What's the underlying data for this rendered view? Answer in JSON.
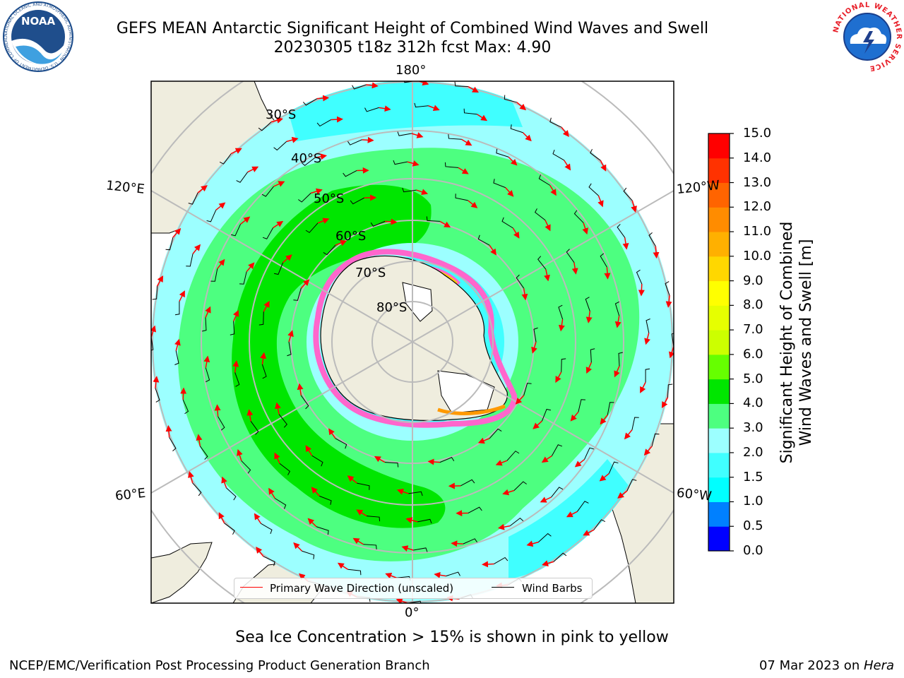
{
  "title": {
    "line1": "GEFS MEAN Antarctic Significant Height of Combined Wind Waves and Swell",
    "line2": "20230305 t18z 312h fcst   Max: 4.90"
  },
  "logos": {
    "left": "NOAA",
    "left_ring_text": "NATIONAL OCEANIC AND ATMOSPHERIC ADMINISTRATION · U.S. DEPARTMENT OF COMMERCE",
    "right_ring_text": "NATIONAL WEATHER SERVICE"
  },
  "map": {
    "projection": "south-polar-stereographic",
    "longitude_labels": {
      "top": "180°",
      "bottom": "0°",
      "upper_left": "120°E",
      "upper_right": "120°W",
      "lower_left": "60°E",
      "lower_right": "60°W"
    },
    "latitude_labels": [
      "30°S",
      "40°S",
      "50°S",
      "60°S",
      "70°S",
      "80°S"
    ],
    "colors": {
      "land": "#efedde",
      "ocean_grid": "#bbbbbb",
      "sea_ice": "#ff66cc",
      "ice_edge": "#ffcc00"
    }
  },
  "colorbar": {
    "title_line1": "Significant Height of Combined",
    "title_line2": "Wind Waves and Swell [m]",
    "levels": [
      "15.0",
      "14.0",
      "13.0",
      "12.0",
      "11.0",
      "10.0",
      "9.0",
      "8.0",
      "7.0",
      "6.0",
      "5.0",
      "4.0",
      "3.0",
      "2.0",
      "1.5",
      "1.0",
      "0.5",
      "0.0"
    ],
    "colors_bottom_to_top": [
      "#0000ff",
      "#0080ff",
      "#00ffff",
      "#40ffff",
      "#9cffff",
      "#4dff80",
      "#00e600",
      "#66ff00",
      "#ccff00",
      "#e6ff00",
      "#ffff00",
      "#ffd700",
      "#ffb000",
      "#ff8c00",
      "#ff6400",
      "#ff3200",
      "#ff0000"
    ]
  },
  "legend": {
    "wave_label": "Primary Wave Direction (unscaled)",
    "barb_label": "Wind Barbs",
    "wave_color": "#ff0000",
    "barb_color": "#000000"
  },
  "footer": {
    "ice_note": "Sea Ice Concentration > 15% is shown in pink to yellow",
    "credit": "NCEP/EMC/Verification Post Processing Product Generation Branch",
    "date_prefix": "07 Mar 2023 on ",
    "date_machine": "Hera"
  }
}
